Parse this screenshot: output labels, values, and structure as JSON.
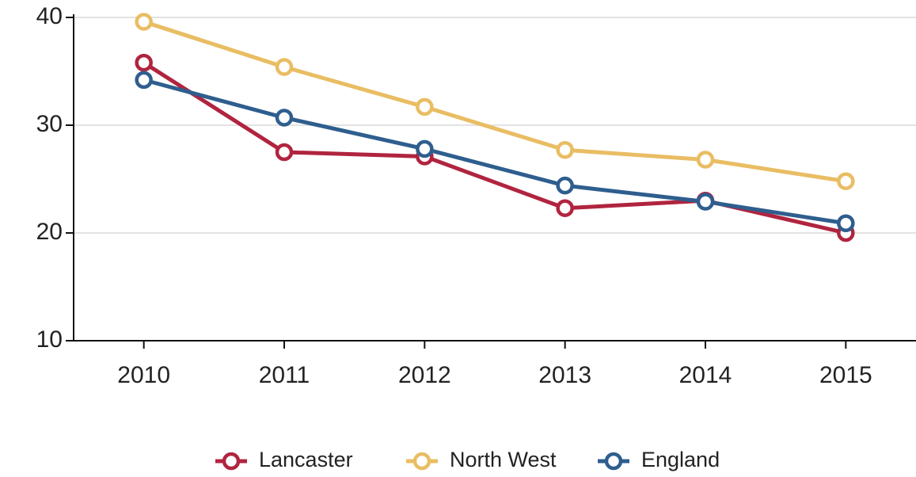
{
  "chart_data": {
    "type": "line",
    "categories": [
      "2010",
      "2011",
      "2012",
      "2013",
      "2014",
      "2015"
    ],
    "series": [
      {
        "name": "Lancaster",
        "color": "#b0243f",
        "values": [
          35.8,
          27.5,
          27.1,
          22.3,
          23.0,
          20.0
        ]
      },
      {
        "name": "North West",
        "color": "#e9bd63",
        "values": [
          39.6,
          35.4,
          31.7,
          27.7,
          26.8,
          24.8
        ]
      },
      {
        "name": "England",
        "color": "#2e5e8e",
        "values": [
          34.2,
          30.7,
          27.8,
          24.4,
          22.9,
          20.9
        ]
      }
    ],
    "ylim": [
      10,
      40
    ],
    "yticks": [
      10,
      20,
      30,
      40
    ],
    "grid": true,
    "legend": "bottom"
  }
}
